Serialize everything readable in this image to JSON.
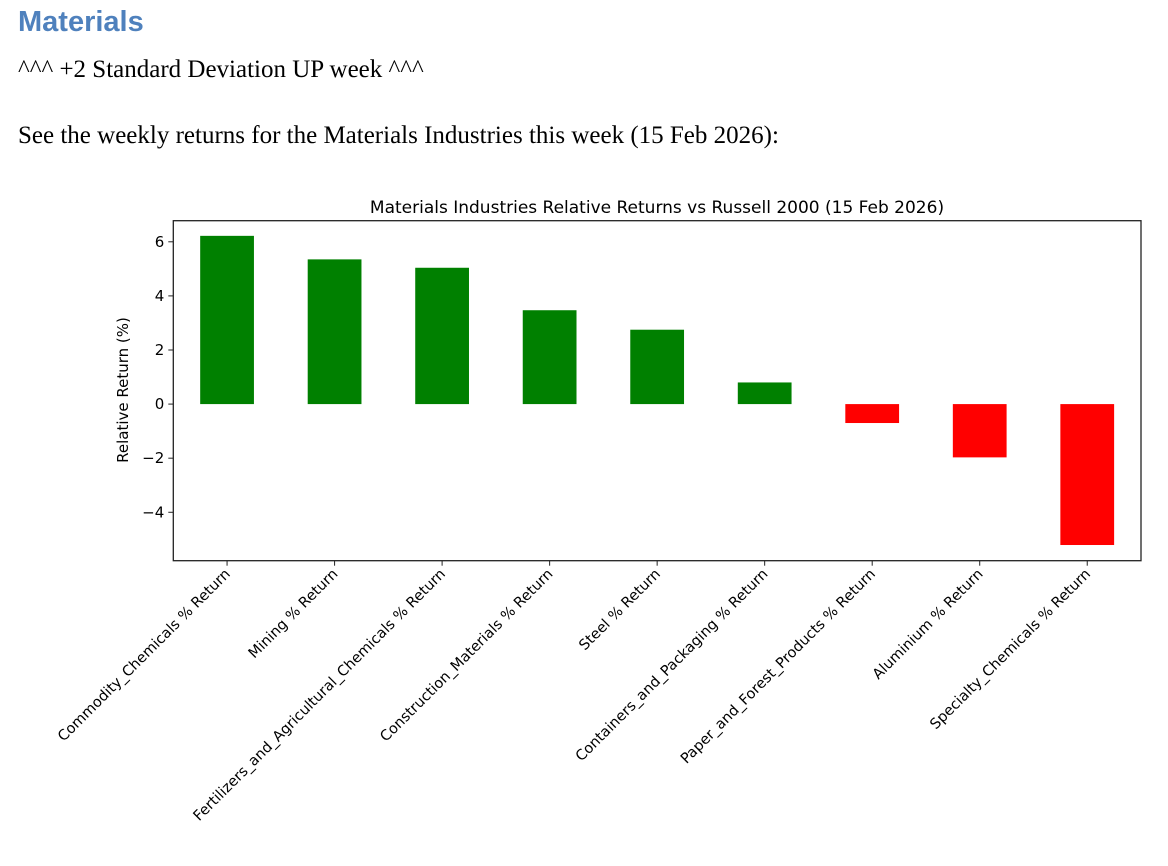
{
  "heading": "Materials",
  "subheading": "^^^ +2 Standard Deviation UP week ^^^",
  "intro": "See the weekly returns for the Materials Industries this week (15 Feb 2026):",
  "colors": {
    "heading": "#4f81bd",
    "positive": "#008000",
    "negative": "#ff0000"
  },
  "chart_data": {
    "type": "bar",
    "title": "Materials Industries Relative Returns vs Russell 2000 (15 Feb 2026)",
    "xlabel": "",
    "ylabel": "Relative Return (%)",
    "ylim": [
      -5.79,
      6.78
    ],
    "yticks": [
      -4,
      -2,
      0,
      2,
      4,
      6
    ],
    "ytick_labels": [
      "−4",
      "−2",
      "0",
      "2",
      "4",
      "6"
    ],
    "grid": false,
    "categories": [
      "Commodity_Chemicals % Return",
      "Mining % Return",
      "Fertilizers_and_Agricultural_Chemicals % Return",
      "Construction_Materials % Return",
      "Steel % Return",
      "Containers_and_Packaging % Return",
      "Paper_and_Forest_Products % Return",
      "Aluminium % Return",
      "Specialty_Chemicals % Return"
    ],
    "values": [
      6.22,
      5.35,
      5.04,
      3.47,
      2.75,
      0.8,
      -0.7,
      -1.97,
      -5.21
    ]
  }
}
